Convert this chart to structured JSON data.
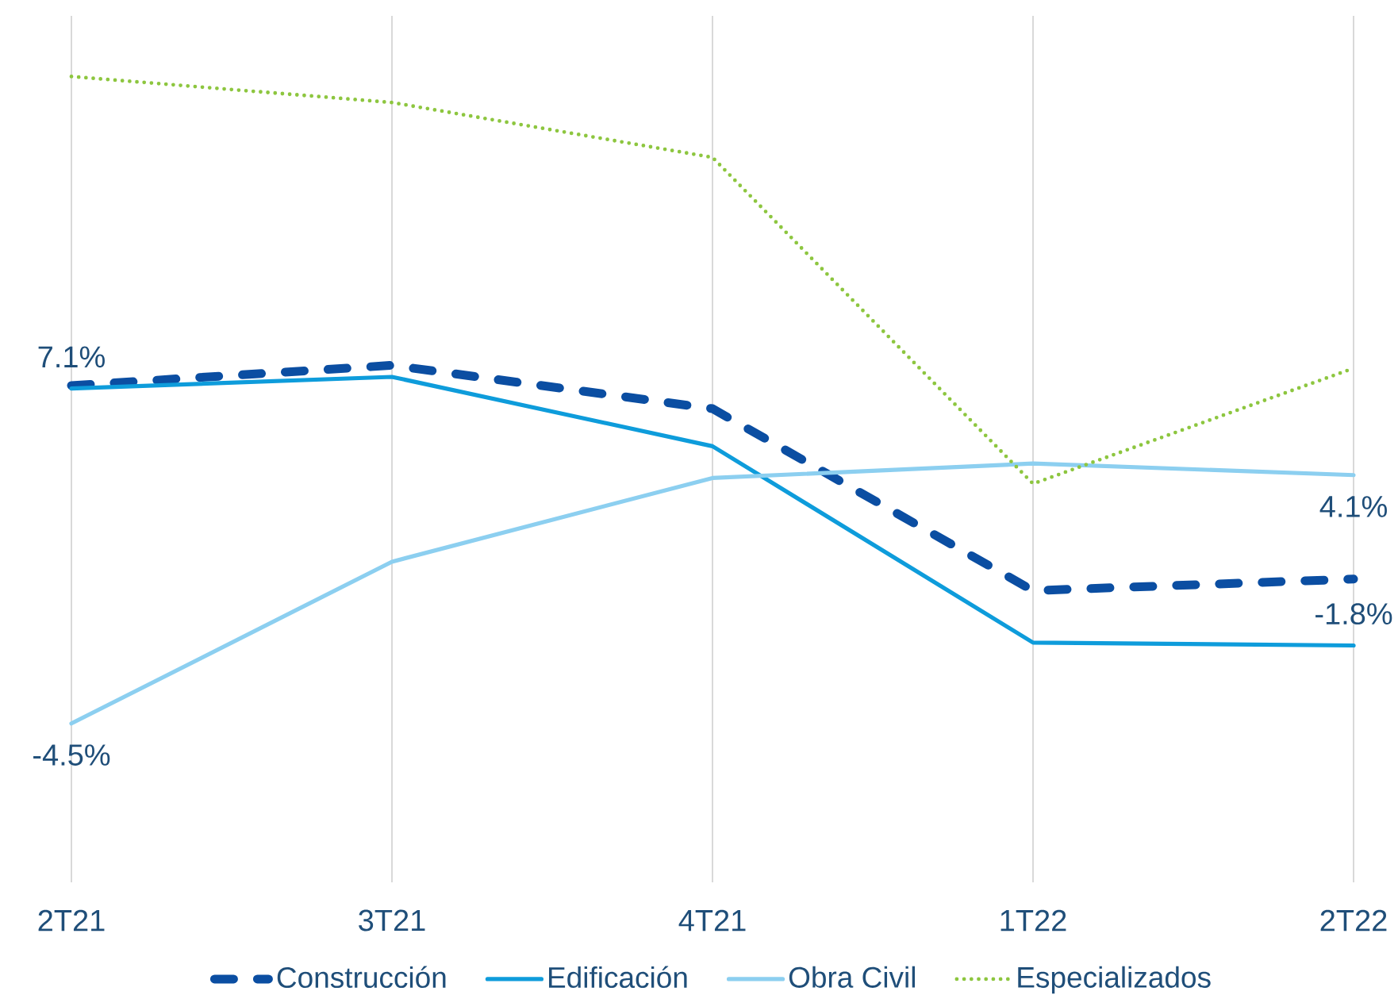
{
  "chart_data": {
    "type": "line",
    "categories": [
      "2T21",
      "3T21",
      "4T21",
      "1T22",
      "2T22"
    ],
    "series": [
      {
        "name": "Construcción",
        "color": "#0b4ea2",
        "line_style": "dashed",
        "values": [
          7.2,
          7.9,
          6.4,
          0.1,
          0.5
        ]
      },
      {
        "name": "Edificación",
        "color": "#0e9cdb",
        "line_style": "solid",
        "values": [
          7.1,
          7.5,
          5.1,
          -1.7,
          -1.8
        ],
        "value_labels": [
          "7.1%",
          null,
          null,
          null,
          "-1.8%"
        ]
      },
      {
        "name": "Obra Civil",
        "color": "#8ccff0",
        "line_style": "solid",
        "values": [
          -4.5,
          1.1,
          4.0,
          4.5,
          4.1
        ],
        "value_labels": [
          "-4.5%",
          null,
          null,
          null,
          "4.1%"
        ]
      },
      {
        "name": "Especializados",
        "color": "#8dc63f",
        "line_style": "dotted",
        "values": [
          17.9,
          17.0,
          15.1,
          3.8,
          7.8
        ]
      }
    ],
    "ylim": [
      -10,
      20
    ],
    "grid": "x",
    "legend": "bottom",
    "tick_labels": "x"
  }
}
